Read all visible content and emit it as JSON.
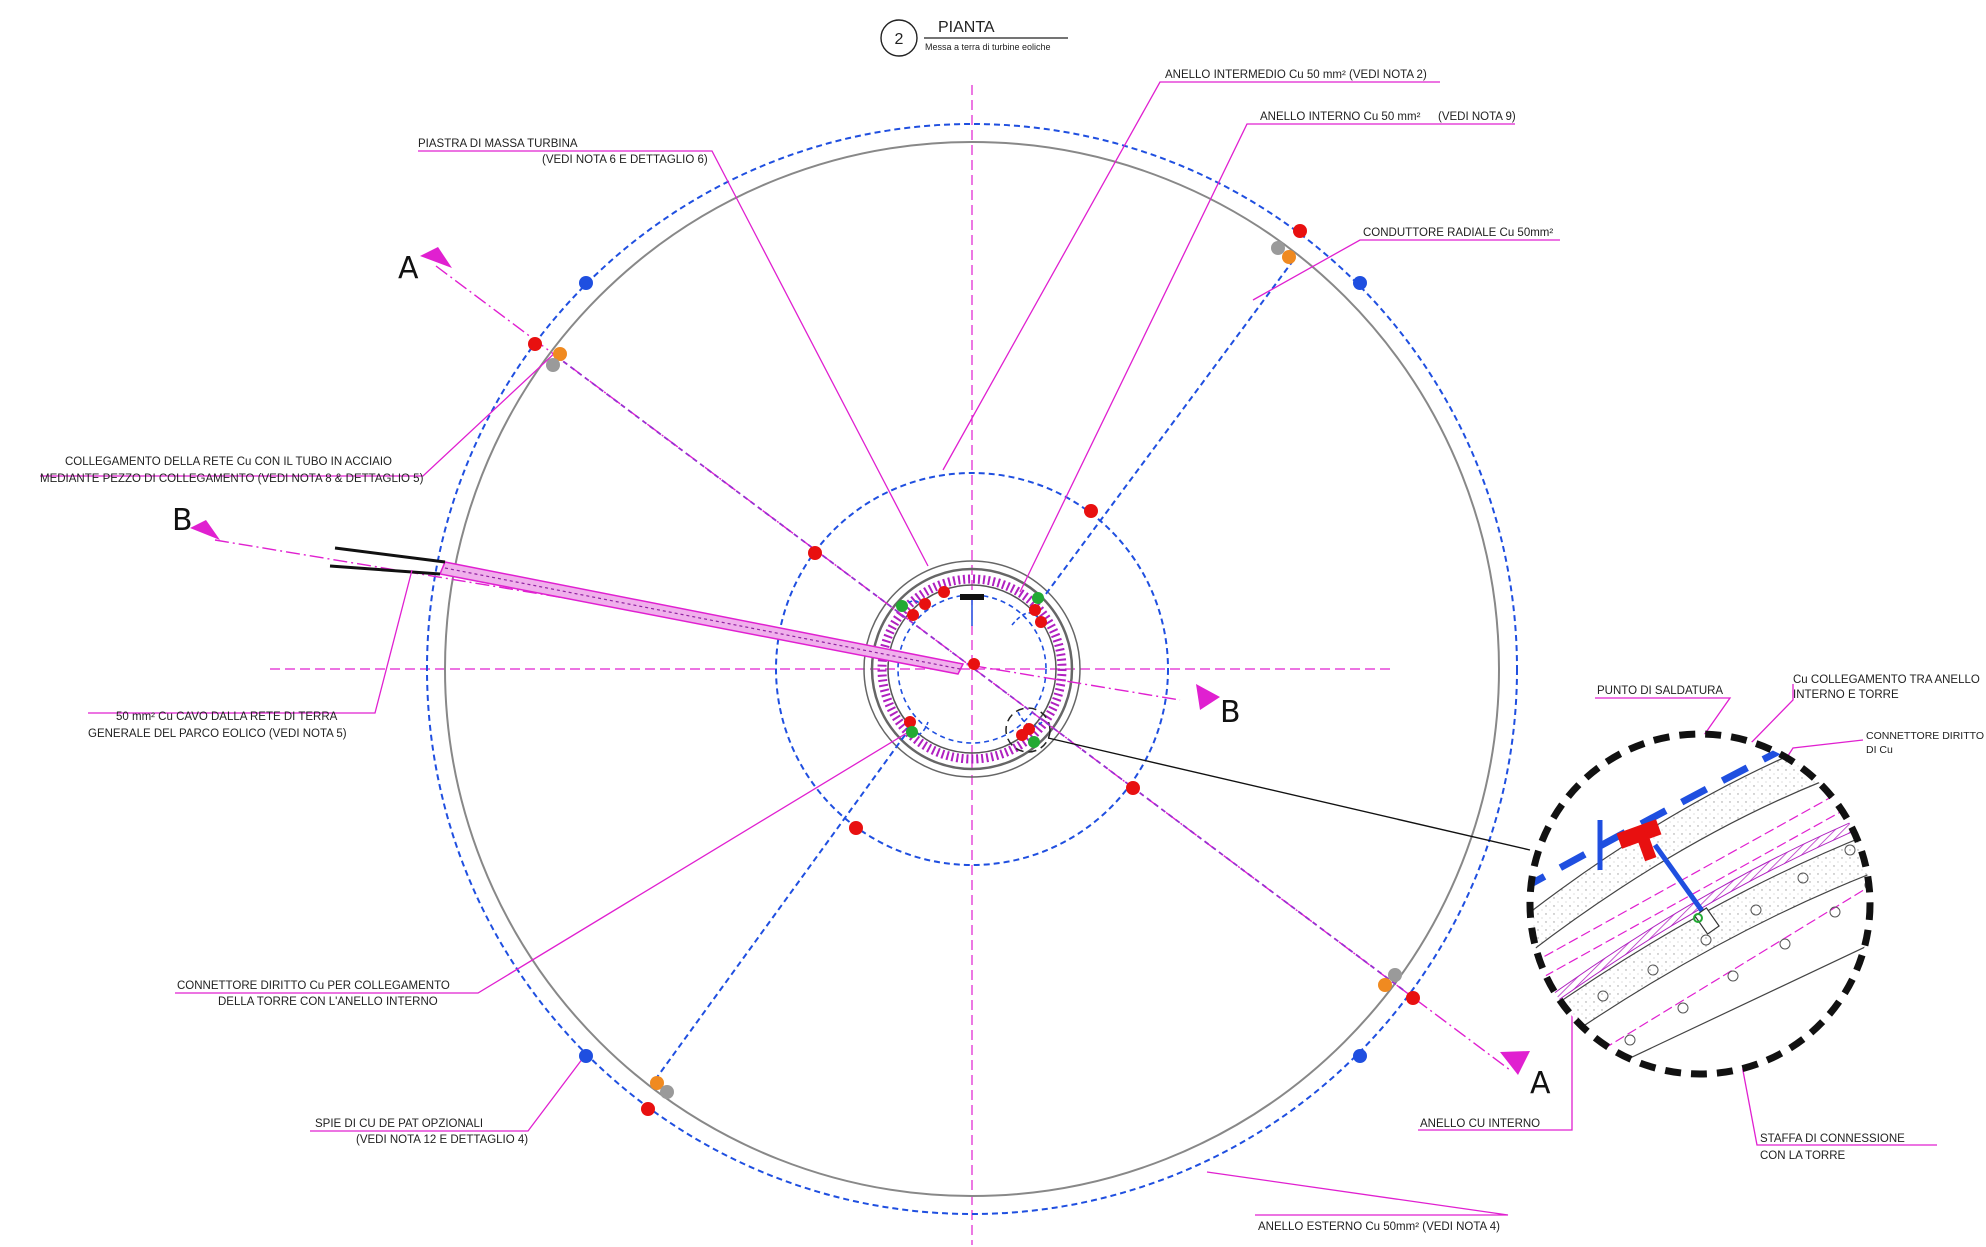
{
  "title": {
    "number": "2",
    "name": "PIANTA",
    "subtitle": "Messa a terra di turbine eoliche"
  },
  "section_marks": {
    "a": "A",
    "b": "B"
  },
  "labels": {
    "anello_intermedio": "ANELLO INTERMEDIO Cu 50 mm² (VEDI NOTA 2)",
    "anello_interno": "ANELLO INTERNO Cu 50 mm²",
    "anello_interno_nota": "(VEDI NOTA 9)",
    "piastra_1": "PIASTRA DI MASSA TURBINA",
    "piastra_2": "(VEDI NOTA 6 E DETTAGLIO 6)",
    "conduttore_radiale": "CONDUTTORE RADIALE Cu 50mm²",
    "collegamento_1": "COLLEGAMENTO DELLA RETE Cu CON IL TUBO IN ACCIAIO",
    "collegamento_2": "MEDIANTE PEZZO DI COLLEGAMENTO (VEDI NOTA 8 & DETTAGLIO 5)",
    "cavo_1": "50 mm² Cu CAVO DALLA RETE DI TERRA",
    "cavo_2": "GENERALE DEL PARCO EOLICO (VEDI NOTA 5)",
    "connettore_1": "CONNETTORE DIRITTO Cu PER COLLEGAMENTO",
    "connettore_2": "DELLA TORRE CON L'ANELLO INTERNO",
    "spie_1": "SPIE DI CU DE PAT OPZIONALI",
    "spie_2": "(VEDI NOTA 12 E DETTAGLIO 4)",
    "anello_esterno": "ANELLO ESTERNO Cu 50mm² (VEDI NOTA 4)",
    "anello_cu_interno": "ANELLO CU INTERNO",
    "punto_saldatura": "PUNTO DI SALDATURA",
    "cu_coll_1": "Cu COLLEGAMENTO TRA ANELLO",
    "cu_coll_2": "INTERNO E TORRE",
    "conn_diritto_1": "CONNETTORE DIRITTO",
    "conn_diritto_2": "DI Cu",
    "staffa_1": "STAFFA DI CONNESSIONE",
    "staffa_2": "CON LA TORRE"
  },
  "colors": {
    "leader": "#e020d0",
    "ring": "#1f4fe0",
    "outline": "#777777",
    "red": "#e81010",
    "orange": "#f08a20",
    "grey": "#9a9a9a",
    "green": "#22aa33",
    "blue": "#1f4fe0"
  }
}
